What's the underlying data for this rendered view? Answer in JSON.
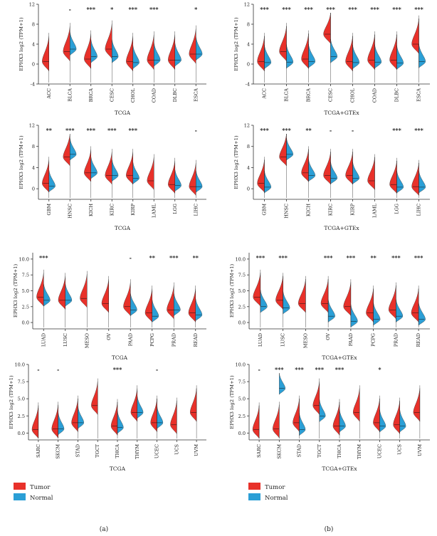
{
  "colors": {
    "tumor": "#e8312a",
    "normal": "#2b9fd6",
    "axis": "#333333"
  },
  "legend": {
    "tumor": "Tumor",
    "normal": "Normal"
  },
  "panel_labels": [
    "(a)",
    "(b)"
  ],
  "chart_data": [
    {
      "id": "a1",
      "type": "violin",
      "title": "TCGA",
      "ylabel": "EPHX3 log2 (TPM+1)",
      "ylim": [
        -4,
        12
      ],
      "yticks": [
        -4,
        0,
        4,
        8,
        12
      ],
      "categories": [
        "ACC",
        "BLCA",
        "BRCA",
        "CESC",
        "CHOL",
        "COAD",
        "DLBC",
        "ESCA"
      ],
      "significance": [
        "",
        "-",
        "***",
        "*",
        "***",
        "***",
        "",
        "*"
      ],
      "tumor_median": [
        0.5,
        2.5,
        1.0,
        3.0,
        0.5,
        0.8,
        0.8,
        2.0
      ],
      "normal_median": [
        null,
        3.0,
        1.5,
        1.5,
        0.3,
        0.8,
        0.8,
        2.0
      ]
    },
    {
      "id": "b1",
      "type": "violin",
      "title": "TCGA+GTEx",
      "ylabel": "EPHX3 log2 (TPM+1)",
      "ylim": [
        -4,
        12
      ],
      "yticks": [
        -4,
        0,
        4,
        8,
        12
      ],
      "categories": [
        "ACC",
        "BLCA",
        "BRCA",
        "CESC",
        "CHOL",
        "COAD",
        "DLBC",
        "ESCA"
      ],
      "significance": [
        "***",
        "***",
        "***",
        "***",
        "***",
        "***",
        "***",
        "***"
      ],
      "tumor_median": [
        0.5,
        2.5,
        1.0,
        6.0,
        0.5,
        0.8,
        0.8,
        4.0
      ],
      "normal_median": [
        0.3,
        0.4,
        0.5,
        1.5,
        0.3,
        0.4,
        0.2,
        0.5
      ]
    },
    {
      "id": "a2",
      "type": "violin",
      "title": "TCGA",
      "ylabel": "EPHX3 log2 (TPM+1)",
      "ylim": [
        -2,
        12
      ],
      "yticks": [
        0,
        4,
        8,
        12
      ],
      "categories": [
        "GBM",
        "HNSC",
        "KICH",
        "KIRC",
        "KIRP",
        "LAML",
        "LGG",
        "LIHC"
      ],
      "significance": [
        "**",
        "***",
        "***",
        "***",
        "***",
        "",
        "",
        "-"
      ],
      "tumor_median": [
        1.0,
        6.0,
        3.0,
        2.5,
        2.5,
        1.5,
        0.8,
        0.4
      ],
      "normal_median": [
        0.5,
        6.5,
        3.0,
        2.5,
        2.0,
        null,
        0.6,
        0.4
      ]
    },
    {
      "id": "b2",
      "type": "violin",
      "title": "TCGA+GTEx",
      "ylabel": "EPHX3 log2 (TPM+1)",
      "ylim": [
        -2,
        12
      ],
      "yticks": [
        0,
        4,
        8,
        12
      ],
      "categories": [
        "GBM",
        "HNSC",
        "KICH",
        "KIRC",
        "KIRP",
        "LAML",
        "LGG",
        "LIHC"
      ],
      "significance": [
        "***",
        "***",
        "**",
        "-",
        "-",
        "",
        "***",
        "***"
      ],
      "tumor_median": [
        1.0,
        6.0,
        3.0,
        2.5,
        2.5,
        1.5,
        0.8,
        0.4
      ],
      "normal_median": [
        0.3,
        6.5,
        2.5,
        2.0,
        2.0,
        null,
        0.3,
        0.3
      ]
    },
    {
      "id": "a3",
      "type": "violin",
      "title": "TCGA",
      "ylabel": "EPHX3 log2 (TPM+1)",
      "ylim": [
        -1,
        11
      ],
      "yticks": [
        0.0,
        2.5,
        5.0,
        7.5,
        10.0
      ],
      "categories": [
        "LUAD",
        "LUSC",
        "MESO",
        "OV",
        "PAAD",
        "PCPG",
        "PRAD",
        "READ"
      ],
      "significance": [
        "***",
        "",
        "",
        "",
        "-",
        "**",
        "***",
        "**"
      ],
      "tumor_median": [
        4.0,
        3.5,
        3.8,
        3.0,
        2.5,
        1.5,
        2.0,
        1.5
      ],
      "normal_median": [
        3.5,
        3.5,
        null,
        null,
        2.0,
        1.0,
        2.0,
        1.2
      ]
    },
    {
      "id": "b3",
      "type": "violin",
      "title": "TCGA+GTEx",
      "ylabel": "EPHX3 log2 (TPM+1)",
      "ylim": [
        -1,
        11
      ],
      "yticks": [
        0.0,
        2.5,
        5.0,
        7.5,
        10.0
      ],
      "categories": [
        "LUAD",
        "LUSC",
        "MESO",
        "OV",
        "PAAD",
        "PCPG",
        "PRAD",
        "READ"
      ],
      "significance": [
        "***",
        "***",
        "",
        "***",
        "***",
        "**",
        "***",
        "***"
      ],
      "tumor_median": [
        4.0,
        3.5,
        3.0,
        3.0,
        2.5,
        1.5,
        2.0,
        1.5
      ],
      "normal_median": [
        2.5,
        2.3,
        null,
        1.0,
        0.2,
        0.5,
        1.0,
        0.5
      ]
    },
    {
      "id": "a4",
      "type": "violin",
      "title": "TCGA",
      "ylabel": "EPHX3 log2 (TPM+1)",
      "ylim": [
        -1,
        10
      ],
      "yticks": [
        0.0,
        2.5,
        5.0,
        7.5,
        10.0
      ],
      "categories": [
        "SARC",
        "SKCM",
        "STAD",
        "TGCT",
        "THCA",
        "THYM",
        "UCEC",
        "UCS",
        "UVM"
      ],
      "significance": [
        "-",
        "-",
        "",
        "",
        "***",
        "",
        "-",
        "",
        ""
      ],
      "tumor_median": [
        0.5,
        0.6,
        1.5,
        4.0,
        1.0,
        3.0,
        1.5,
        1.2,
        3.0
      ],
      "normal_median": [
        null,
        0.6,
        1.5,
        null,
        0.8,
        3.0,
        1.5,
        null,
        null
      ]
    },
    {
      "id": "b4",
      "type": "violin",
      "title": "TCGA+GTEx",
      "ylabel": "EPHX3 log2 (TPM+1)",
      "ylim": [
        -1,
        10
      ],
      "yticks": [
        0.0,
        2.5,
        5.0,
        7.5,
        10.0
      ],
      "categories": [
        "SARC",
        "SKCM",
        "STAD",
        "TGCT",
        "THCA",
        "THYM",
        "UCEC",
        "UCS",
        "UVM"
      ],
      "significance": [
        "-",
        "***",
        "***",
        "***",
        "***",
        "",
        "*",
        "",
        ""
      ],
      "tumor_median": [
        0.5,
        0.6,
        1.5,
        4.0,
        1.0,
        3.0,
        1.5,
        1.2,
        3.0
      ],
      "normal_median": [
        null,
        6.5,
        0.5,
        2.5,
        1.0,
        null,
        1.0,
        1.0,
        null
      ]
    }
  ]
}
